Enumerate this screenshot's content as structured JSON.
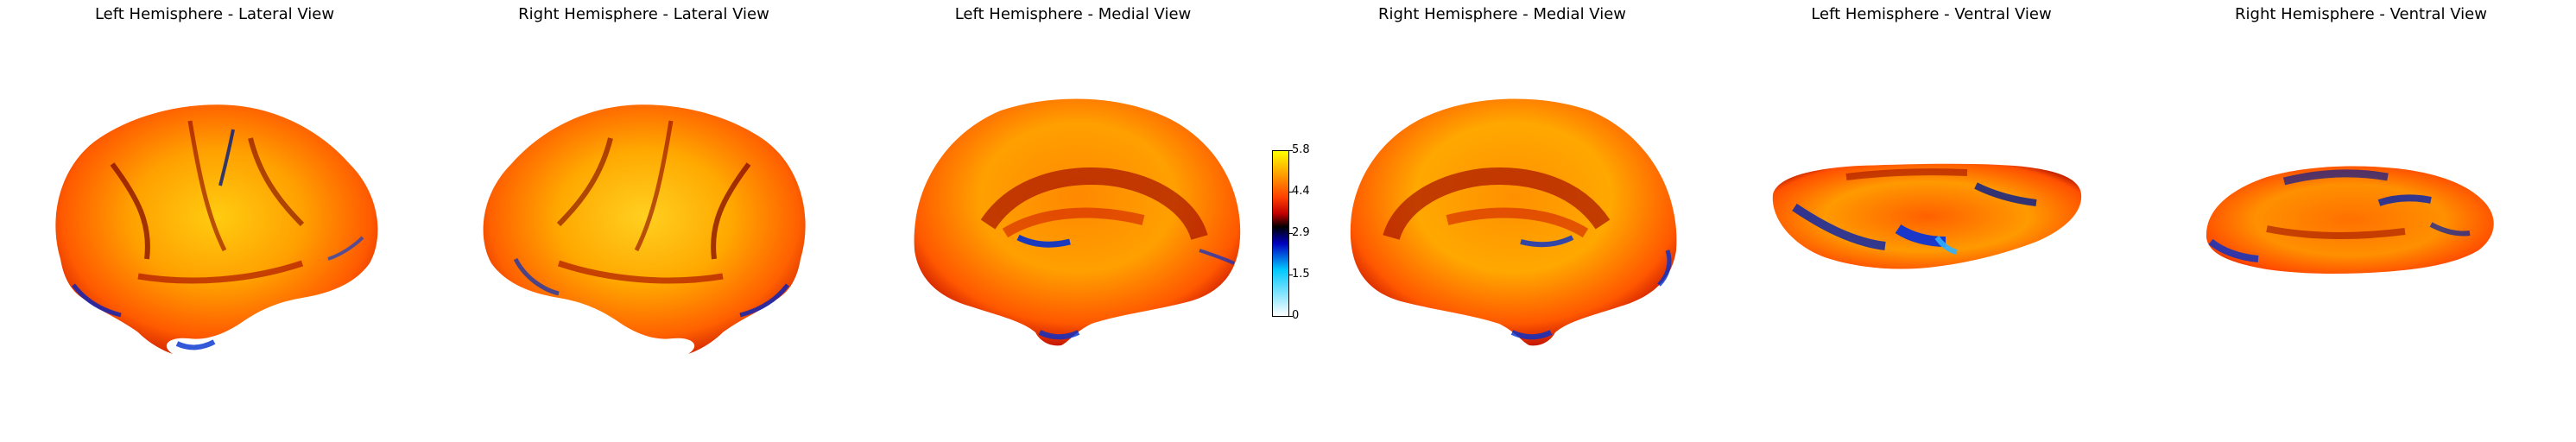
{
  "panels": [
    {
      "title": "Left Hemisphere - Lateral View",
      "view": "lateral",
      "hemisphere": "left"
    },
    {
      "title": "Right Hemisphere - Lateral View",
      "view": "lateral",
      "hemisphere": "right"
    },
    {
      "title": "Left Hemisphere - Medial View",
      "view": "medial",
      "hemisphere": "left"
    },
    {
      "title": "Right Hemisphere - Medial View",
      "view": "medial",
      "hemisphere": "right"
    },
    {
      "title": "Left Hemisphere - Ventral View",
      "view": "ventral",
      "hemisphere": "left"
    },
    {
      "title": "Right Hemisphere - Ventral View",
      "view": "ventral",
      "hemisphere": "right"
    }
  ],
  "colorbar": {
    "ticks": [
      "5.8",
      "4.4",
      "2.9",
      "1.5",
      "0"
    ],
    "colormap": [
      "#ffffff",
      "#00c8ff",
      "#0000c0",
      "#000000",
      "#c00000",
      "#ff4000",
      "#ffa000",
      "#ffff00"
    ]
  }
}
